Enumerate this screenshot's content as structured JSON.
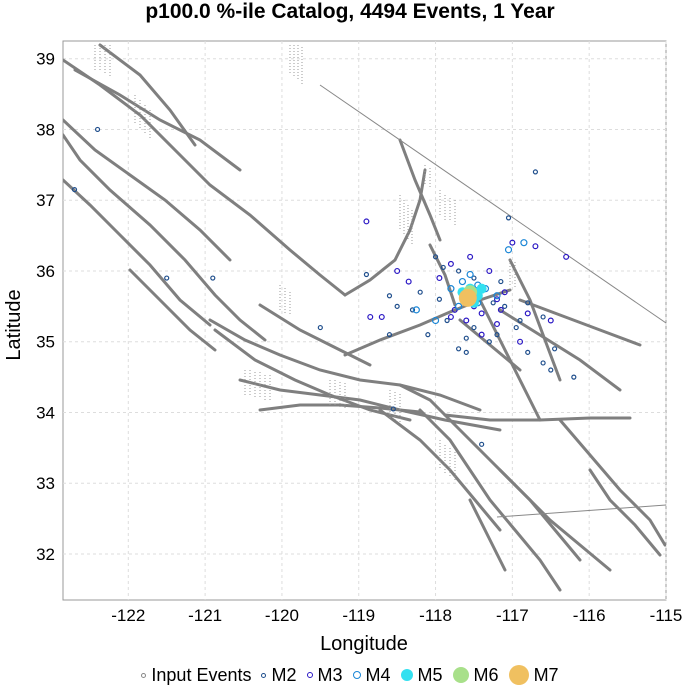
{
  "chart_data": {
    "type": "scatter",
    "title": "p100.0 %-ile Catalog, 4494 Events, 1 Year",
    "xlabel": "Longitude",
    "ylabel": "Latitude",
    "xlim": [
      -122.85,
      -115.0
    ],
    "ylim": [
      31.35,
      39.25
    ],
    "xticks": [
      -122,
      -121,
      -120,
      -119,
      -118,
      -117,
      -116,
      -115
    ],
    "yticks": [
      32,
      33,
      34,
      35,
      36,
      37,
      38,
      39
    ],
    "grid": true,
    "legend_position": "bottom",
    "legend": [
      {
        "label": "Input Events",
        "color": "#888888",
        "filled": false
      },
      {
        "label": "M2",
        "color": "#1f4e8c",
        "filled": false
      },
      {
        "label": "M3",
        "color": "#2a17c4",
        "filled": false
      },
      {
        "label": "M4",
        "color": "#1a86d6",
        "filled": false
      },
      {
        "label": "M5",
        "color": "#33e0f0",
        "filled": true
      },
      {
        "label": "M6",
        "color": "#a8e08a",
        "filled": true
      },
      {
        "label": "M7",
        "color": "#f0c060",
        "filled": true
      }
    ],
    "series": [
      {
        "name": "M2",
        "points": [
          [
            -122.4,
            38.0
          ],
          [
            -122.7,
            37.15
          ],
          [
            -121.5,
            35.9
          ],
          [
            -120.9,
            35.9
          ],
          [
            -119.5,
            35.2
          ],
          [
            -118.9,
            35.95
          ],
          [
            -118.6,
            35.65
          ],
          [
            -118.6,
            35.1
          ],
          [
            -118.5,
            35.5
          ],
          [
            -118.3,
            35.45
          ],
          [
            -118.2,
            35.7
          ],
          [
            -117.95,
            35.6
          ],
          [
            -117.85,
            35.3
          ],
          [
            -117.7,
            34.9
          ],
          [
            -117.6,
            34.85
          ],
          [
            -117.5,
            35.2
          ],
          [
            -117.3,
            35.0
          ],
          [
            -117.2,
            35.1
          ],
          [
            -117.1,
            35.5
          ],
          [
            -116.9,
            35.3
          ],
          [
            -116.8,
            34.85
          ],
          [
            -116.6,
            34.7
          ],
          [
            -116.5,
            34.6
          ],
          [
            -116.2,
            34.5
          ],
          [
            -116.45,
            34.9
          ],
          [
            -116.7,
            37.4
          ],
          [
            -117.05,
            36.75
          ],
          [
            -117.4,
            33.55
          ],
          [
            -118.55,
            34.05
          ],
          [
            -118.0,
            36.2
          ],
          [
            -117.9,
            36.05
          ],
          [
            -117.7,
            36.0
          ],
          [
            -117.5,
            35.9
          ],
          [
            -117.25,
            35.55
          ],
          [
            -117.15,
            35.85
          ],
          [
            -118.1,
            35.1
          ],
          [
            -117.6,
            35.05
          ],
          [
            -116.95,
            35.2
          ],
          [
            -116.8,
            35.55
          ],
          [
            -116.6,
            35.35
          ]
        ]
      },
      {
        "name": "M3",
        "points": [
          [
            -118.9,
            36.7
          ],
          [
            -118.5,
            36.0
          ],
          [
            -118.7,
            35.35
          ],
          [
            -117.8,
            36.1
          ],
          [
            -117.8,
            35.35
          ],
          [
            -117.6,
            35.3
          ],
          [
            -117.4,
            35.1
          ],
          [
            -117.1,
            35.7
          ],
          [
            -117.0,
            36.4
          ],
          [
            -116.7,
            36.35
          ],
          [
            -116.3,
            36.2
          ],
          [
            -116.8,
            35.4
          ],
          [
            -116.5,
            35.3
          ],
          [
            -116.9,
            35.0
          ],
          [
            -117.2,
            35.25
          ],
          [
            -117.4,
            35.4
          ],
          [
            -117.5,
            35.5
          ],
          [
            -117.95,
            35.9
          ],
          [
            -117.3,
            36.0
          ],
          [
            -117.2,
            35.6
          ],
          [
            -118.85,
            35.35
          ],
          [
            -118.35,
            35.85
          ],
          [
            -117.55,
            36.2
          ],
          [
            -117.75,
            35.45
          ],
          [
            -117.15,
            35.45
          ]
        ]
      },
      {
        "name": "M4",
        "points": [
          [
            -117.55,
            35.95
          ],
          [
            -117.45,
            35.8
          ],
          [
            -117.7,
            35.5
          ],
          [
            -117.65,
            35.85
          ],
          [
            -117.45,
            35.55
          ],
          [
            -117.8,
            35.75
          ],
          [
            -117.35,
            35.75
          ],
          [
            -117.2,
            35.65
          ],
          [
            -116.85,
            36.4
          ],
          [
            -117.05,
            36.3
          ],
          [
            -118.25,
            35.45
          ],
          [
            -118.0,
            35.3
          ]
        ]
      },
      {
        "name": "M5",
        "points": [
          [
            -117.6,
            35.6
          ],
          [
            -117.5,
            35.7
          ],
          [
            -117.45,
            35.65
          ],
          [
            -117.55,
            35.75
          ],
          [
            -117.65,
            35.7
          ],
          [
            -117.5,
            35.55
          ],
          [
            -117.4,
            35.75
          ]
        ]
      },
      {
        "name": "M6",
        "points": [
          [
            -117.55,
            35.7
          ]
        ]
      },
      {
        "name": "M7",
        "points": [
          [
            -117.58,
            35.62
          ]
        ]
      }
    ]
  }
}
